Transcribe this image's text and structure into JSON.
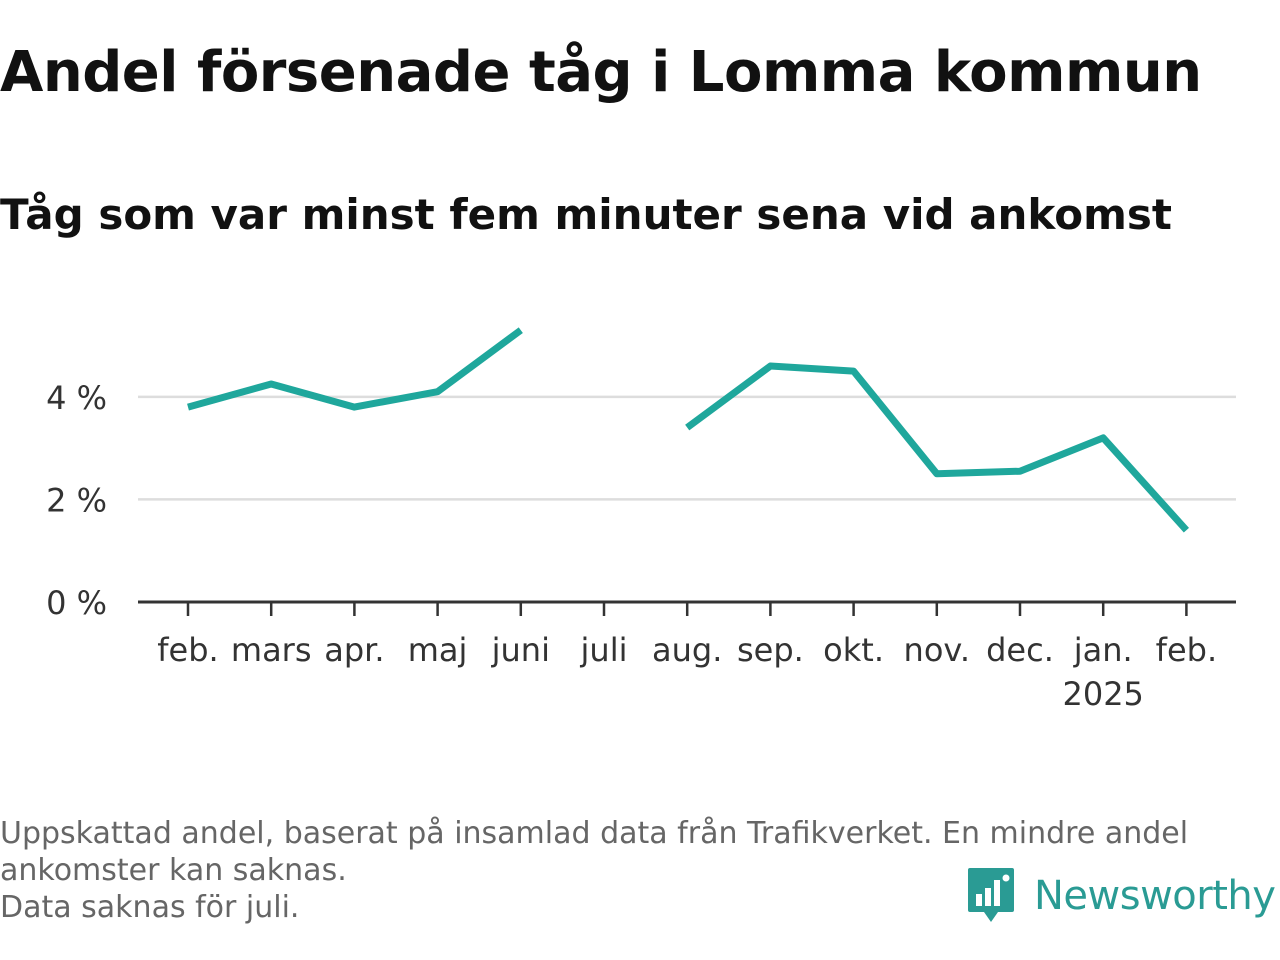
{
  "title": "Andel försenade tåg i Lomma kommun",
  "subtitle": "Tåg som var minst fem minuter sena vid ankomst",
  "footer": {
    "note_line1": "Uppskattad andel, baserat på insamlad data från Trafikverket. En mindre andel",
    "note_line2": "ankomster kan saknas.",
    "note_line3": "Data saknas för juli."
  },
  "brand": {
    "name": "Newsworthy",
    "icon": "newsworthy-logo-icon",
    "color": "#2a9b94"
  },
  "chart_data": {
    "type": "line",
    "categories": [
      "feb.",
      "mars",
      "apr.",
      "maj",
      "juni",
      "juli",
      "aug.",
      "sep.",
      "okt.",
      "nov.",
      "dec.",
      "jan.",
      "feb."
    ],
    "year_label": {
      "category_index": 11,
      "text": "2025"
    },
    "series": [
      {
        "values": [
          3.8,
          4.25,
          3.8,
          4.1,
          5.3,
          null,
          3.4,
          4.6,
          4.5,
          2.5,
          2.55,
          3.2,
          1.4
        ],
        "color": "#1fa79c"
      }
    ],
    "y_ticks": [
      0,
      2,
      4
    ],
    "y_tick_labels": [
      "0 %",
      "2 %",
      "4 %"
    ],
    "ylim": [
      0,
      5.4
    ],
    "grid": true,
    "xlabel": "",
    "ylabel": ""
  }
}
